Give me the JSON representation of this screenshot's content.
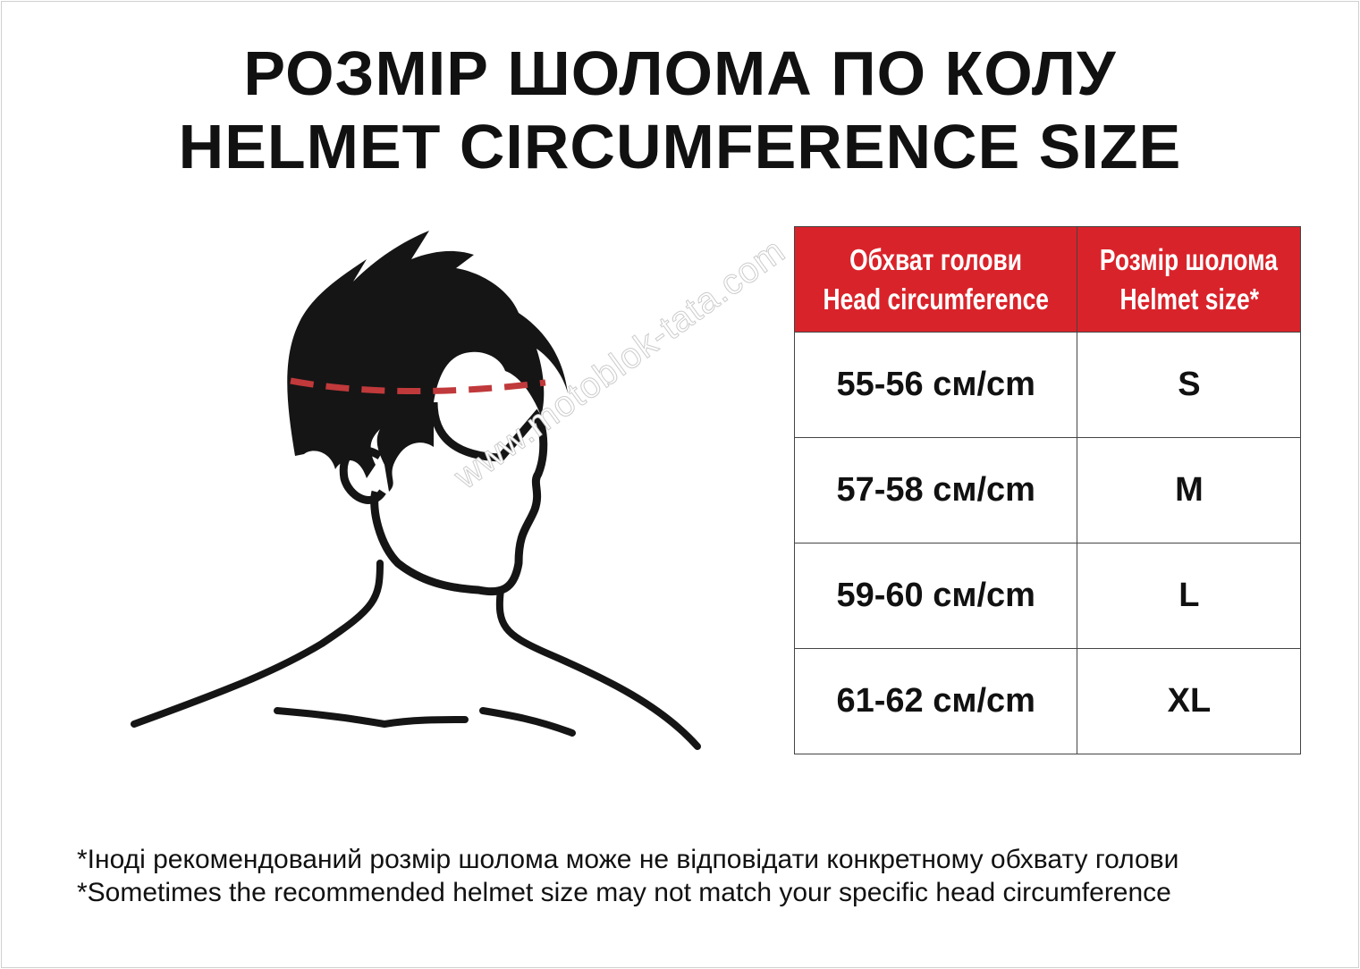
{
  "title": {
    "line1": "РОЗМІР ШОЛОМА ПО КОЛУ",
    "line2": "HELMET CIRCUMFERENCE SIZE"
  },
  "table": {
    "headers": [
      {
        "ua": "Обхват голови",
        "en": "Head circumference"
      },
      {
        "ua": "Розмір шолома",
        "en": "Helmet size*"
      }
    ],
    "rows": [
      {
        "circumference": "55-56 см/cm",
        "size": "S"
      },
      {
        "circumference": "57-58 см/cm",
        "size": "M"
      },
      {
        "circumference": "59-60 см/cm",
        "size": "L"
      },
      {
        "circumference": "61-62 см/cm",
        "size": "XL"
      }
    ]
  },
  "notes": {
    "ua": "*Іноді рекомендований розмір шолома може не відповідати конкретному обхвату голови",
    "en": "*Sometimes the recommended helmet size may not match your specific head circumference"
  },
  "watermark": "www.motoblok-tata.com",
  "colors": {
    "header_bg": "#d9232a",
    "measure_line": "#c0393b"
  }
}
